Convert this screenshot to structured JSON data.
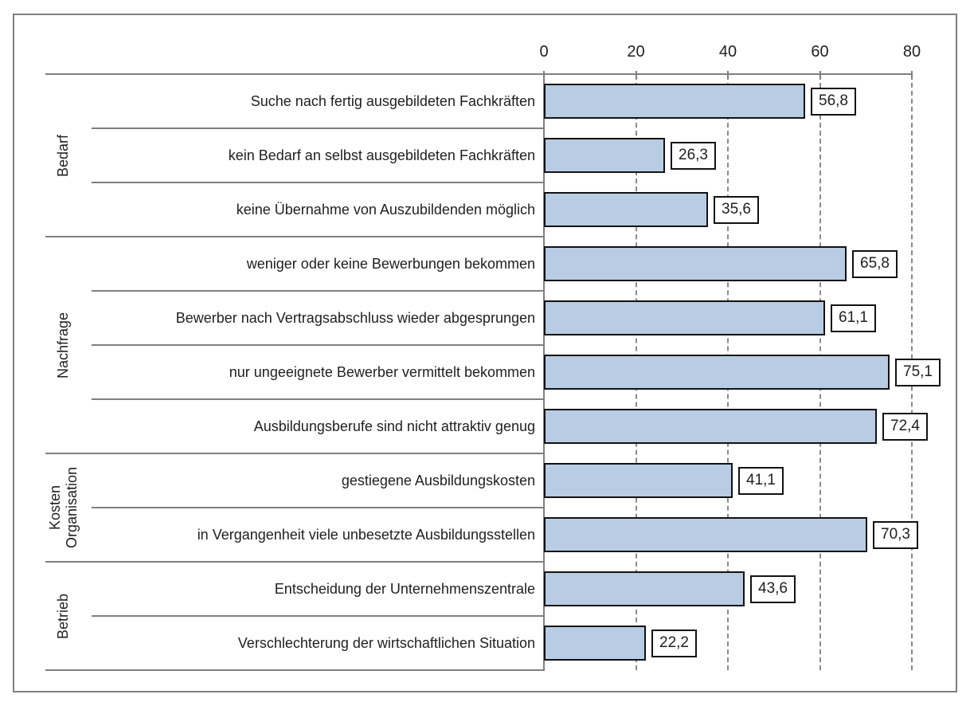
{
  "chart_data": {
    "type": "bar",
    "orientation": "horizontal",
    "title": "",
    "xlabel": "",
    "ylabel": "",
    "xlim": [
      0,
      80
    ],
    "x_tick_values": [
      0,
      20,
      40,
      60,
      80
    ],
    "x_tick_labels": [
      "0",
      "20",
      "40",
      "60",
      "80"
    ],
    "grid": "vertical-dashed",
    "legend": "none",
    "value_format": "decimal-comma",
    "groups": [
      {
        "label": "Bedarf",
        "label_lines": [
          "Bedarf"
        ],
        "items": [
          {
            "label": "Suche nach fertig ausgebildeten Fachkräften",
            "value": 56.8,
            "value_label": "56,8"
          },
          {
            "label": "kein Bedarf an selbst ausgebildeten Fachkräften",
            "value": 26.3,
            "value_label": "26,3"
          },
          {
            "label": "keine Übernahme von Auszubildenden möglich",
            "value": 35.6,
            "value_label": "35,6"
          }
        ]
      },
      {
        "label": "Nachfrage",
        "label_lines": [
          "Nachfrage"
        ],
        "items": [
          {
            "label": "weniger oder keine Bewerbungen bekommen",
            "value": 65.8,
            "value_label": "65,8"
          },
          {
            "label": "Bewerber nach Vertragsabschluss wieder abgesprungen",
            "value": 61.1,
            "value_label": "61,1"
          },
          {
            "label": "nur ungeeignete Bewerber vermittelt bekommen",
            "value": 75.1,
            "value_label": "75,1"
          },
          {
            "label": "Ausbildungsberufe sind nicht attraktiv genug",
            "value": 72.4,
            "value_label": "72,4"
          }
        ]
      },
      {
        "label": "Kosten Organisation",
        "label_lines": [
          "Kosten",
          "Organisation"
        ],
        "items": [
          {
            "label": "gestiegene Ausbildungskosten",
            "value": 41.1,
            "value_label": "41,1"
          },
          {
            "label": "in Vergangenheit viele unbesetzte Ausbildungsstellen",
            "value": 70.3,
            "value_label": "70,3"
          }
        ]
      },
      {
        "label": "Betrieb",
        "label_lines": [
          "Betrieb"
        ],
        "items": [
          {
            "label": "Entscheidung der Unternehmenszentrale",
            "value": 43.6,
            "value_label": "43,6"
          },
          {
            "label": "Verschlechterung der wirtschaftlichen Situation",
            "value": 22.2,
            "value_label": "22,2"
          }
        ]
      }
    ],
    "colors": {
      "bar_fill": "#b8cce4",
      "bar_border": "#121212",
      "axis_line": "#7f7f7f",
      "gridline": "#8a8a8a",
      "text": "#1f1f1f",
      "value_box_fill": "#ffffff",
      "value_box_border": "#121212",
      "frame_border": "#808080"
    }
  }
}
